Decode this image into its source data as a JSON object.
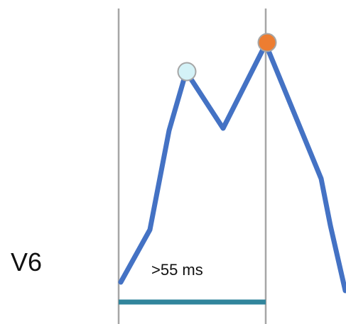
{
  "lead_label": "V6",
  "interval_label": ">55 ms",
  "colors": {
    "waveform": "#4472c4",
    "marker_lines": "#a6a6a6",
    "interval_bar": "#31859c",
    "first_peak_dot": "#d4f2f7",
    "second_peak_dot": "#ed7d31",
    "dot_outline": "#a6a6a6",
    "text": "#111111"
  }
}
